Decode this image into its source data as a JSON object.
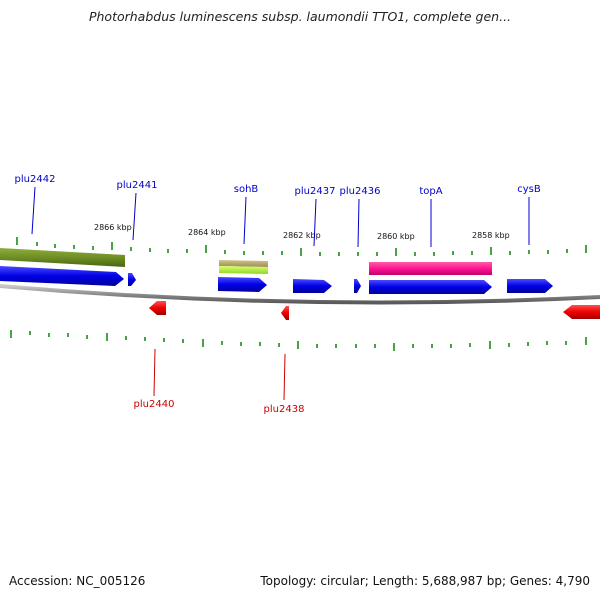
{
  "title": "Photorhabdus luminescens subsp. laumondii TTO1, complete gen...",
  "footer": {
    "accession": "Accession: NC_005126",
    "topology": "Topology: circular; Length: 5,688,987 bp; Genes: 4,790"
  },
  "colors": {
    "blue_gene": "#0000ee",
    "red_gene": "#ee0000",
    "olive_block": "#6b8a22",
    "khaki_block": "#b5a86b",
    "lime_block": "#adff2f",
    "magenta_block": "#ff1493",
    "tick_green": "#1a8a1a",
    "backbone_gray": "#8c8c8c",
    "label_blue": "#0000cc",
    "label_red": "#cc0000"
  },
  "genes": [
    {
      "name": "plu2442",
      "strand": "forward"
    },
    {
      "name": "plu2441",
      "strand": "forward"
    },
    {
      "name": "sohB",
      "strand": "forward"
    },
    {
      "name": "plu2437",
      "strand": "forward"
    },
    {
      "name": "plu2436",
      "strand": "forward"
    },
    {
      "name": "topA",
      "strand": "forward"
    },
    {
      "name": "cysB",
      "strand": "forward"
    },
    {
      "name": "plu2440",
      "strand": "reverse"
    },
    {
      "name": "plu2438",
      "strand": "reverse"
    }
  ],
  "scale_labels": [
    "2866 kbp",
    "2864 kbp",
    "2862 kbp",
    "2860 kbp",
    "2858 kbp"
  ]
}
